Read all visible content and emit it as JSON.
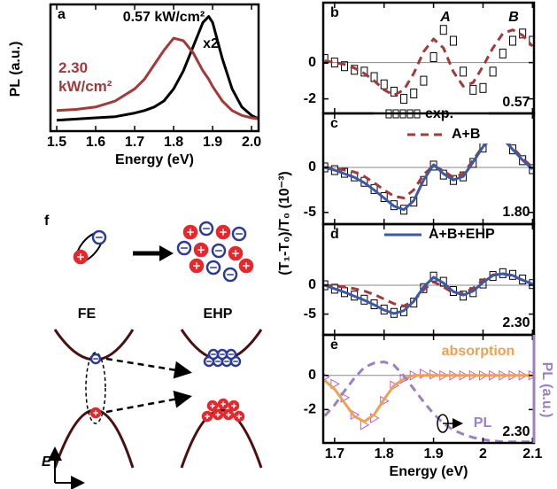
{
  "chart_data": [
    {
      "type": "line",
      "panel_label": "a",
      "xlabel": "Energy (eV)",
      "ylabel": "PL  (a.u.)",
      "x": [
        1.5,
        1.55,
        1.6,
        1.65,
        1.7,
        1.725,
        1.75,
        1.775,
        1.8,
        1.825,
        1.85,
        1.875,
        1.89,
        1.9,
        1.925,
        1.95,
        1.975,
        2.0,
        2.02
      ],
      "xlim": [
        1.484,
        2.018
      ],
      "xticks": [
        1.5,
        1.6,
        1.7,
        1.8,
        1.9,
        {
          "value": 2,
          "label": "2.0"
        }
      ],
      "ylim": [
        -0.05,
        1
      ],
      "series": [
        {
          "name": "0.57 kW/cm²",
          "color": "#000000",
          "style": "line",
          "annotation": "x2",
          "values": [
            0.04,
            0.05,
            0.06,
            0.07,
            0.1,
            0.12,
            0.15,
            0.2,
            0.3,
            0.45,
            0.65,
            0.85,
            0.9,
            0.85,
            0.55,
            0.3,
            0.15,
            0.08,
            0.05
          ]
        },
        {
          "name": "2.30 kW/cm²",
          "color": "#a33a3a",
          "style": "line",
          "values": [
            0.12,
            0.13,
            0.15,
            0.2,
            0.3,
            0.38,
            0.5,
            0.62,
            0.72,
            0.7,
            0.6,
            0.45,
            0.38,
            0.32,
            0.2,
            0.12,
            0.08,
            0.06,
            0.05
          ]
        }
      ]
    },
    {
      "type": "line",
      "panel_label": "b",
      "zero_line": true,
      "x": [
        1.68,
        1.7,
        1.72,
        1.74,
        1.76,
        1.78,
        1.8,
        1.82,
        1.84,
        1.86,
        1.88,
        1.9,
        1.92,
        1.94,
        1.96,
        1.98,
        2.0,
        2.02,
        2.04,
        2.06,
        2.08,
        2.1
      ],
      "xlim": [
        1.677,
        2.103
      ],
      "ylim": [
        -2.8,
        3.3
      ],
      "yticks": [
        -2,
        0
      ],
      "annotations": [
        "A",
        "B",
        "0.57"
      ],
      "series": [
        {
          "color": "#000000",
          "style": "square-markers",
          "values": [
            0.2,
            0,
            -0.2,
            -0.4,
            -0.5,
            -0.8,
            -1.2,
            -1.6,
            -2,
            -1.7,
            -1,
            0.3,
            1.8,
            1.2,
            -0.5,
            -1.5,
            -1.4,
            -0.5,
            0.5,
            1.2,
            1.6,
            1.2
          ]
        },
        {
          "color": "#a33a3a",
          "style": "dashed",
          "values": [
            0.1,
            0,
            -0.1,
            -0.3,
            -0.6,
            -1,
            -1.5,
            -1.8,
            -1.5,
            -0.6,
            0.6,
            1.3,
            0.8,
            -0.5,
            -1.3,
            -1.1,
            -0.2,
            0.8,
            1.6,
            1.8,
            1.5,
            0.9
          ]
        }
      ]
    },
    {
      "type": "line",
      "panel_label": "c",
      "zero_line": true,
      "ylabel": "(T₁-T₀)/T₀ (10⁻³)",
      "x": [
        1.68,
        1.7,
        1.72,
        1.74,
        1.76,
        1.78,
        1.8,
        1.82,
        1.84,
        1.86,
        1.88,
        1.9,
        1.92,
        1.94,
        1.96,
        1.98,
        2.0,
        2.02,
        2.04,
        2.06,
        2.08,
        2.1
      ],
      "xlim": [
        1.677,
        2.103
      ],
      "ylim": [
        -6.3,
        6
      ],
      "yticks": [
        -5,
        0
      ],
      "annotations": [
        "1.80"
      ],
      "series": [
        {
          "name": "exp.",
          "color": "#000000",
          "style": "square-markers",
          "values": [
            0,
            -0.3,
            -0.6,
            -1,
            -1.6,
            -2.4,
            -3.3,
            -4.2,
            -4.7,
            -3.8,
            -1.5,
            0.2,
            -0.8,
            -1.4,
            -1,
            0.5,
            2.2,
            3.3,
            3.2,
            2,
            0.8,
            -0.2
          ]
        },
        {
          "name": "A+B",
          "color": "#a33a3a",
          "style": "dashed",
          "values": [
            0,
            -0.1,
            -0.3,
            -0.5,
            -1,
            -1.7,
            -2.5,
            -3.2,
            -3.4,
            -2.5,
            -0.8,
            0.2,
            -0.4,
            -1.1,
            -0.7,
            0.8,
            2.4,
            3.4,
            3.3,
            2.2,
            1,
            0
          ]
        },
        {
          "name": "A+B+EHP",
          "color": "#3a5aa8",
          "style": "line",
          "values": [
            0,
            -0.3,
            -0.7,
            -1.1,
            -1.7,
            -2.5,
            -3.4,
            -4.3,
            -4.7,
            -3.7,
            -1.4,
            0.3,
            -0.7,
            -1.4,
            -1,
            0.6,
            2.3,
            3.4,
            3.2,
            2,
            0.8,
            -0.2
          ]
        }
      ]
    },
    {
      "type": "line",
      "panel_label": "d",
      "zero_line": true,
      "x": [
        1.68,
        1.7,
        1.72,
        1.74,
        1.76,
        1.78,
        1.8,
        1.82,
        1.84,
        1.86,
        1.88,
        1.9,
        1.92,
        1.94,
        1.96,
        1.98,
        2.0,
        2.02,
        2.04,
        2.06,
        2.08,
        2.1
      ],
      "xlim": [
        1.677,
        2.103
      ],
      "ylim": [
        -8.6,
        10.6
      ],
      "yticks": [
        -5,
        0
      ],
      "annotations": [
        "2.30"
      ],
      "series": [
        {
          "color": "#000000",
          "style": "square-markers",
          "values": [
            0,
            -0.6,
            -1.2,
            -1.8,
            -2.5,
            -3.3,
            -4.2,
            -4.8,
            -4.5,
            -3,
            -0.5,
            1.5,
            0.6,
            -1,
            -1.8,
            -1.2,
            0.3,
            1.6,
            2.1,
            1.8,
            1,
            0.2
          ]
        },
        {
          "color": "#a33a3a",
          "style": "dashed",
          "values": [
            0,
            -0.1,
            -0.3,
            -0.6,
            -1,
            -1.6,
            -2.4,
            -3.2,
            -3.6,
            -2.7,
            -0.8,
            0.6,
            -0.3,
            -1.3,
            -1.4,
            -0.5,
            0.9,
            1.8,
            2,
            1.6,
            0.9,
            0.2
          ]
        },
        {
          "color": "#3a5aa8",
          "style": "line",
          "values": [
            0,
            -0.6,
            -1.2,
            -1.9,
            -2.6,
            -3.4,
            -4.3,
            -4.9,
            -4.4,
            -2.8,
            -0.3,
            1.4,
            0.4,
            -1.1,
            -1.7,
            -1,
            0.5,
            1.7,
            2,
            1.7,
            0.9,
            0.2
          ]
        }
      ]
    },
    {
      "type": "line",
      "panel_label": "e",
      "zero_line": true,
      "xlabel": "Energy (eV)",
      "y2label": "PL (a.u.)",
      "x": [
        1.68,
        1.7,
        1.72,
        1.74,
        1.76,
        1.78,
        1.8,
        1.82,
        1.84,
        1.86,
        1.88,
        1.9,
        1.92,
        1.94,
        1.96,
        1.98,
        2.0,
        2.02,
        2.04,
        2.06,
        2.08,
        2.1
      ],
      "xlim": [
        1.677,
        2.103
      ],
      "xticks": [
        1.7,
        1.8,
        1.9,
        2,
        2.1
      ],
      "ylim": [
        -3.95,
        2.37
      ],
      "yticks": [
        -2,
        0
      ],
      "y2lim": [
        0,
        1
      ],
      "annotations": [
        "absorption",
        "PL",
        "2.30"
      ],
      "series": [
        {
          "color": "#c060c0",
          "style": "triangle-markers",
          "values": [
            -0.1,
            -0.5,
            -1.3,
            -2.3,
            -2.9,
            -2.5,
            -1.5,
            -0.6,
            -0.2,
            0,
            0.1,
            0.05,
            0,
            0,
            0,
            0,
            0,
            0,
            0,
            0,
            0,
            0
          ]
        },
        {
          "color": "#f0a050",
          "style": "line",
          "values": [
            -0.3,
            -0.8,
            -1.6,
            -2.4,
            -2.7,
            -2.3,
            -1.4,
            -0.6,
            -0.2,
            0,
            0,
            0,
            0,
            0,
            0,
            0,
            0,
            0,
            0,
            0,
            0,
            0
          ]
        },
        {
          "color": "#9a80c4",
          "style": "dashed",
          "axis": "y2",
          "values": [
            0.25,
            0.35,
            0.48,
            0.6,
            0.7,
            0.74,
            0.75,
            0.72,
            0.62,
            0.5,
            0.38,
            0.27,
            0.18,
            0.12,
            0.08,
            0.05,
            0.03,
            0.02,
            0.01,
            0.01,
            0.01,
            0.01
          ]
        }
      ]
    }
  ],
  "diagram": {
    "panel_label": "f",
    "left_label": "FE",
    "right_label": "EHP",
    "axis_label": "E"
  }
}
